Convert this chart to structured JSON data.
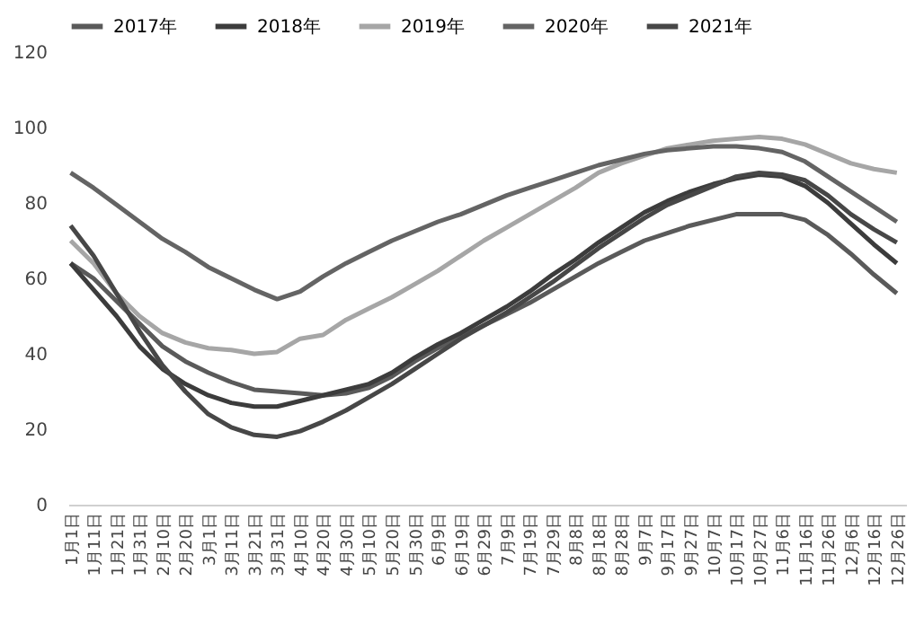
{
  "chart_data": {
    "type": "line",
    "categories": [
      "1月1日",
      "1月11日",
      "1月21日",
      "1月31日",
      "2月10日",
      "2月20日",
      "3月1日",
      "3月11日",
      "3月21日",
      "3月31日",
      "4月10日",
      "4月20日",
      "4月30日",
      "5月10日",
      "5月20日",
      "5月30日",
      "6月9日",
      "6月19日",
      "6月29日",
      "7月9日",
      "7月19日",
      "7月29日",
      "8月8日",
      "8月18日",
      "8月28日",
      "9月7日",
      "9月17日",
      "9月27日",
      "10月7日",
      "10月17日",
      "10月27日",
      "11月6日",
      "11月16日",
      "11月26日",
      "12月6日",
      "12月16日",
      "12月26日"
    ],
    "series": [
      {
        "name": "2017年",
        "color": "#5a5a5a",
        "values": [
          64,
          60,
          54,
          48,
          42,
          38,
          35,
          32.5,
          30.5,
          30,
          29.5,
          29,
          29.5,
          31,
          34,
          38,
          41.5,
          44.5,
          47.5,
          50.5,
          53.5,
          57,
          60.5,
          64,
          67,
          70,
          72,
          74,
          75.5,
          77,
          77,
          77,
          75.5,
          71.5,
          66.5,
          61,
          56
        ]
      },
      {
        "name": "2018年",
        "color": "#3c3c3c",
        "values": [
          64,
          57,
          50,
          42,
          36,
          32,
          29,
          27,
          26,
          26,
          27.5,
          29,
          30.5,
          32,
          35,
          39,
          42.5,
          45.5,
          49,
          52.5,
          56.5,
          61,
          65,
          69.5,
          73.5,
          77.5,
          80.5,
          83,
          85,
          86.5,
          87.5,
          87,
          84.5,
          80,
          74.5,
          69,
          64
        ]
      },
      {
        "name": "2019年",
        "color": "#a6a6a6",
        "values": [
          70,
          64,
          56,
          50,
          45.5,
          43,
          41.5,
          41,
          40,
          40.5,
          44,
          45,
          49,
          52,
          55,
          58.5,
          62,
          66,
          70,
          73.5,
          77,
          80.5,
          84,
          88,
          90.5,
          92.5,
          94.5,
          95.5,
          96.5,
          97,
          97.5,
          97,
          95.5,
          93,
          90.5,
          89,
          88
        ]
      },
      {
        "name": "2020年",
        "color": "#646464",
        "values": [
          88,
          84,
          79.5,
          75,
          70.5,
          67,
          63,
          60,
          57,
          54.5,
          56.5,
          60.5,
          64,
          67,
          70,
          72.5,
          75,
          77,
          79.5,
          82,
          84,
          86,
          88,
          90,
          91.5,
          93,
          94,
          94.5,
          95,
          95,
          94.5,
          93.5,
          91,
          87,
          83,
          79,
          75
        ]
      },
      {
        "name": "2021年",
        "color": "#474747",
        "values": [
          74,
          66,
          56,
          46,
          37,
          30,
          24,
          20.5,
          18.5,
          18,
          19.5,
          22,
          25,
          28.5,
          32,
          36,
          40,
          44,
          47.5,
          51,
          55,
          59,
          63.5,
          68,
          72,
          76,
          79.5,
          82,
          84.5,
          87,
          88,
          87.5,
          86,
          82,
          77,
          73,
          69.5
        ]
      }
    ],
    "ylim": [
      0,
      120
    ],
    "yticks": [
      0,
      20,
      40,
      60,
      80,
      100,
      120
    ],
    "legend": "top"
  }
}
